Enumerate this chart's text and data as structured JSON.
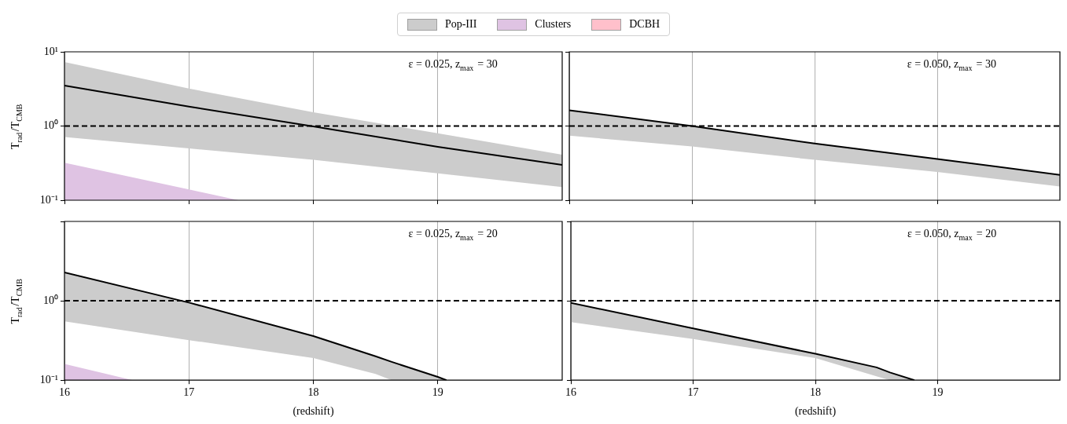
{
  "chart_data": [
    {
      "type": "line",
      "ylabel": "T$_{rad}$/T$_{CMB}$",
      "annotations": [
        "ε = 0.025, z$_{max}$ = 30"
      ],
      "xlim": [
        16,
        20
      ],
      "xticks": [
        {
          "value": 16,
          "label": null
        },
        {
          "value": 17,
          "label": null
        },
        {
          "value": 18,
          "label": null
        },
        {
          "value": 19,
          "label": null
        }
      ],
      "ylim": [
        0.1,
        10
      ],
      "yticks": [
        {
          "value": 0.1,
          "label": "10⁻¹"
        },
        {
          "value": 1,
          "label": "10⁰"
        },
        {
          "value": 10,
          "label": "10¹"
        }
      ],
      "log": "y",
      "grid": "x",
      "legend": "top",
      "tick_labels": "y",
      "ref_lines": [
        {
          "axis": "y",
          "value": 1,
          "line_style": "dashed",
          "color": "#000000"
        }
      ],
      "series": [
        {
          "color": "#000000",
          "x": [
            16,
            17,
            18,
            19,
            20
          ],
          "values": [
            3.5,
            1.83,
            0.99,
            0.525,
            0.3
          ]
        },
        {
          "name": "Pop-III",
          "color": "#cccccc",
          "x": [
            16,
            17,
            18,
            19,
            20
          ],
          "values": [
            null,
            null,
            null,
            null,
            null
          ],
          "lower": [
            0.71,
            0.5,
            0.35,
            0.23,
            0.15
          ],
          "upper": [
            7.3,
            3.2,
            1.53,
            0.8,
            0.41
          ]
        },
        {
          "name": "Clusters",
          "type": "area",
          "color": "#dfc3e3",
          "x": [
            16,
            17,
            17.4
          ],
          "values": [
            0.32,
            0.14,
            0.1
          ]
        },
        {
          "name": "DCBH",
          "type": "area",
          "color": "#ffc0cb"
        }
      ]
    },
    {
      "type": "line",
      "annotations": [
        "ε = 0.050, z$_{max}$ = 30"
      ],
      "xlim": [
        16,
        20
      ],
      "xticks": [
        {
          "value": 16,
          "label": null
        },
        {
          "value": 17,
          "label": null
        },
        {
          "value": 18,
          "label": null
        },
        {
          "value": 19,
          "label": null
        }
      ],
      "ylim": [
        0.1,
        10
      ],
      "yticks": [
        {
          "value": 0.1,
          "label": null
        },
        {
          "value": 1,
          "label": null
        },
        {
          "value": 10,
          "label": null
        }
      ],
      "log": "y",
      "grid": "x",
      "tick_labels": false,
      "ref_lines": [
        {
          "axis": "y",
          "value": 1,
          "line_style": "dashed",
          "color": "#000000"
        }
      ],
      "series": [
        {
          "color": "#000000",
          "x": [
            16,
            17,
            18,
            19,
            20
          ],
          "values": [
            1.63,
            1.0,
            0.58,
            0.36,
            0.22
          ]
        },
        {
          "color": "#cccccc",
          "x": [
            16,
            17,
            18,
            19,
            20
          ],
          "values": [
            null,
            null,
            null,
            null,
            null
          ],
          "lower": [
            0.74,
            0.53,
            0.35,
            0.24,
            0.153
          ],
          "upper": [
            1.63,
            1.0,
            0.58,
            0.36,
            0.22
          ]
        }
      ]
    },
    {
      "type": "line",
      "xlabel": "(redshift)",
      "ylabel": "T$_{rad}$/T$_{CMB}$",
      "annotations": [
        "ε = 0.025, z$_{max}$ = 20"
      ],
      "xlim": [
        16,
        20
      ],
      "xticks": [
        16,
        17,
        18,
        19
      ],
      "ylim": [
        0.1,
        10
      ],
      "yticks": [
        {
          "value": 0.1,
          "label": "10⁻¹"
        },
        {
          "value": 1,
          "label": "10⁰"
        },
        {
          "value": 10,
          "label": null
        }
      ],
      "log": "y",
      "grid": "x",
      "ref_lines": [
        {
          "axis": "y",
          "value": 1,
          "line_style": "dashed",
          "color": "#000000"
        }
      ],
      "series": [
        {
          "color": "#000000",
          "x": [
            16,
            17,
            18,
            18.5,
            18.63,
            19,
            19.07
          ],
          "values": [
            2.28,
            0.95,
            0.36,
            0.2,
            0.17,
            0.11,
            0.1
          ]
        },
        {
          "color": "#cccccc",
          "x": [
            16,
            17,
            18,
            18.5,
            18.63,
            19,
            19.07
          ],
          "values": [
            null,
            null,
            null,
            null,
            null,
            null,
            null
          ],
          "lower": [
            0.55,
            0.32,
            0.19,
            0.12,
            0.1,
            0.1,
            0.1
          ],
          "upper": [
            2.28,
            0.95,
            0.36,
            0.2,
            0.17,
            0.11,
            0.1
          ]
        },
        {
          "type": "area",
          "color": "#dfc3e3",
          "x": [
            16,
            16.55
          ],
          "values": [
            0.16,
            0.1
          ]
        }
      ]
    },
    {
      "type": "line",
      "xlabel": "(redshift)",
      "annotations": [
        "ε = 0.050, z$_{max}$ = 20"
      ],
      "xlim": [
        16,
        20
      ],
      "xticks": [
        16,
        17,
        18,
        19
      ],
      "ylim": [
        0.1,
        10
      ],
      "yticks": [
        {
          "value": 0.1,
          "label": null
        },
        {
          "value": 1,
          "label": null
        },
        {
          "value": 10,
          "label": null
        }
      ],
      "log": "y",
      "grid": "x",
      "tick_labels": "x",
      "ref_lines": [
        {
          "axis": "y",
          "value": 1,
          "line_style": "dashed",
          "color": "#000000"
        }
      ],
      "series": [
        {
          "color": "#000000",
          "x": [
            16,
            17,
            18,
            18.5,
            18.61,
            18.81
          ],
          "values": [
            0.94,
            0.45,
            0.215,
            0.145,
            0.125,
            0.1
          ]
        },
        {
          "color": "#cccccc",
          "x": [
            16,
            17,
            18,
            18.5,
            18.61,
            18.81
          ],
          "values": [
            null,
            null,
            null,
            null,
            null,
            null
          ],
          "lower": [
            0.54,
            0.33,
            0.19,
            0.112,
            0.1,
            0.1
          ],
          "upper": [
            0.94,
            0.45,
            0.215,
            0.145,
            0.125,
            0.1
          ]
        }
      ]
    }
  ]
}
